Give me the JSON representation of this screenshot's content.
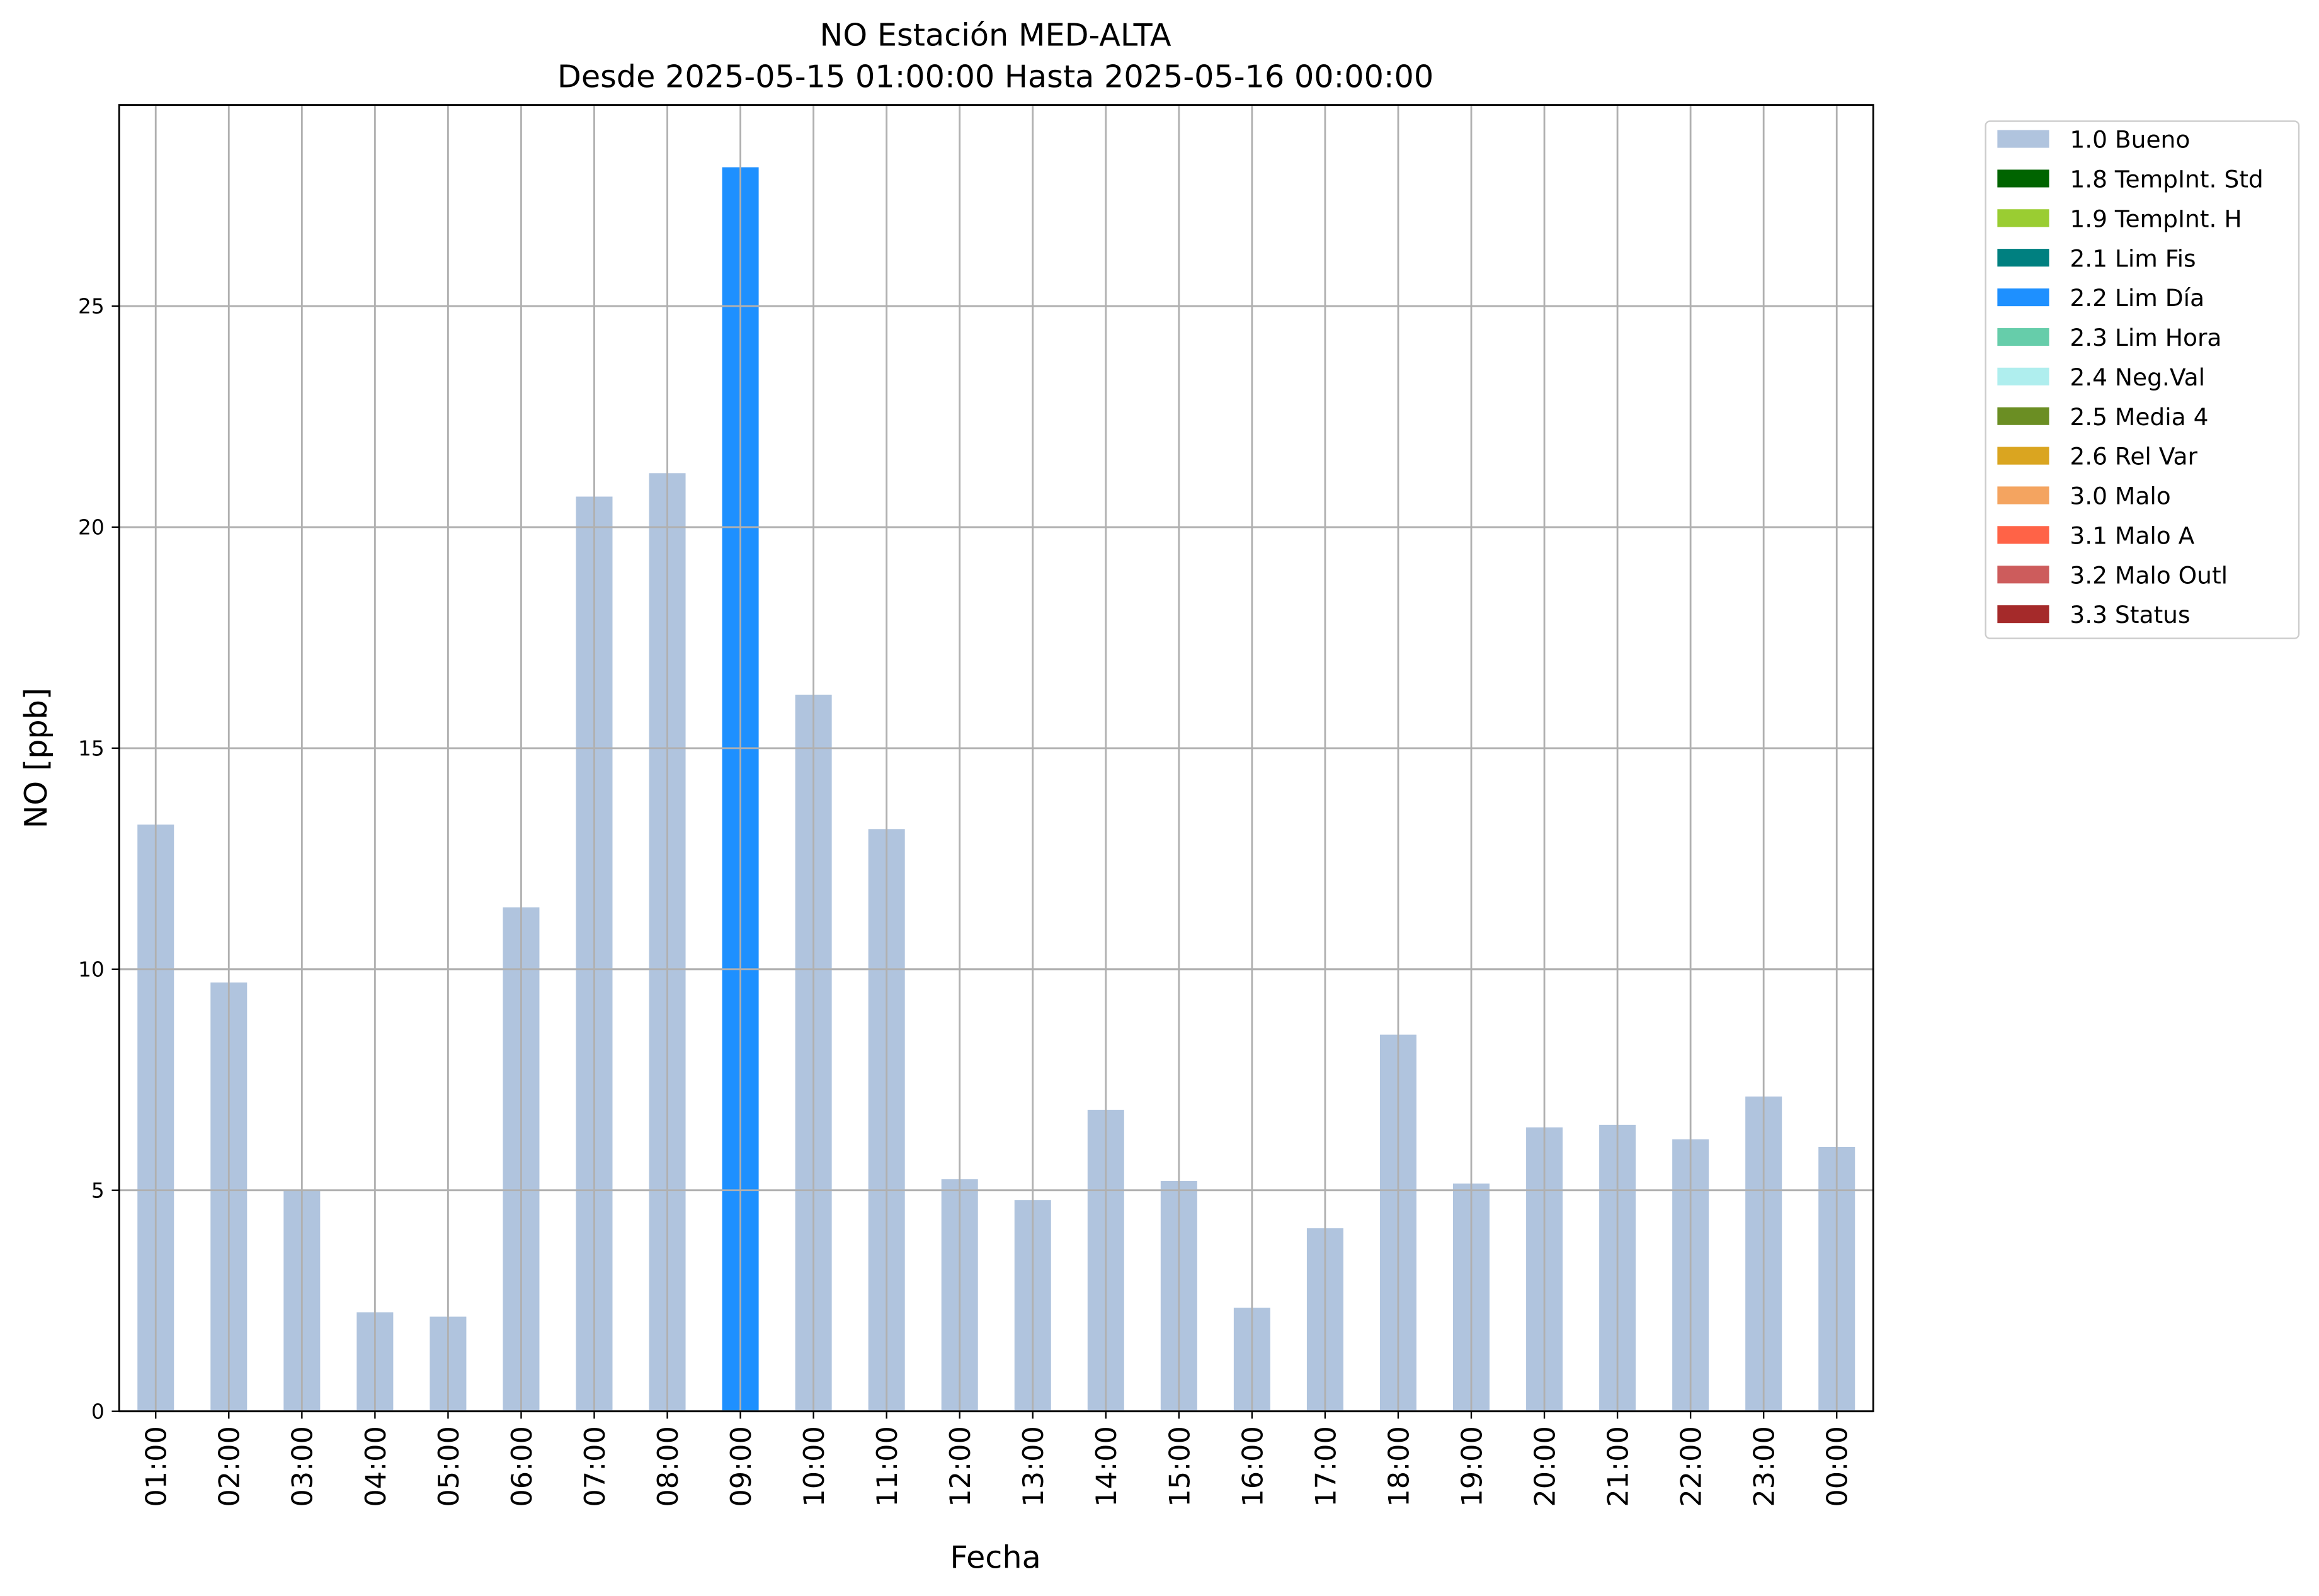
{
  "chart_data": {
    "type": "bar",
    "stacked": true,
    "title": "NO Estación MED-ALTA",
    "subtitle": "Desde 2025-05-15 01:00:00 Hasta 2025-05-16 00:00:00",
    "x_label": "Fecha",
    "y_label": "NO [ppb]",
    "categories": [
      "01:00",
      "02:00",
      "03:00",
      "04:00",
      "05:00",
      "06:00",
      "07:00",
      "08:00",
      "09:00",
      "10:00",
      "11:00",
      "12:00",
      "13:00",
      "14:00",
      "15:00",
      "16:00",
      "17:00",
      "18:00",
      "19:00",
      "20:00",
      "21:00",
      "22:00",
      "23:00",
      "00:00"
    ],
    "series": [
      {
        "name": "1.0 Bueno",
        "color": "#b0c4de",
        "values": [
          13.27,
          9.7,
          5.0,
          2.24,
          2.14,
          11.4,
          20.69,
          21.22,
          null,
          16.21,
          13.17,
          5.25,
          4.78,
          6.82,
          5.21,
          2.34,
          4.14,
          8.52,
          5.15,
          6.42,
          6.48,
          6.15,
          7.12,
          5.98
        ]
      },
      {
        "name": "1.8 TempInt. Std",
        "color": "#006400",
        "values": [
          null,
          null,
          null,
          null,
          null,
          null,
          null,
          null,
          null,
          null,
          null,
          null,
          null,
          null,
          null,
          null,
          null,
          null,
          null,
          null,
          null,
          null,
          null,
          null
        ]
      },
      {
        "name": "1.9 TempInt. H",
        "color": "#9acd32",
        "values": [
          null,
          null,
          null,
          null,
          null,
          null,
          null,
          null,
          null,
          null,
          null,
          null,
          null,
          null,
          null,
          null,
          null,
          null,
          null,
          null,
          null,
          null,
          null,
          null
        ]
      },
      {
        "name": "2.1 Lim Fis",
        "color": "#008080",
        "values": [
          null,
          null,
          null,
          null,
          null,
          null,
          null,
          null,
          null,
          null,
          null,
          null,
          null,
          null,
          null,
          null,
          null,
          null,
          null,
          null,
          null,
          null,
          null,
          null
        ]
      },
      {
        "name": "2.2 Lim Día",
        "color": "#1e90ff",
        "values": [
          null,
          null,
          null,
          null,
          null,
          null,
          null,
          null,
          28.14,
          null,
          null,
          null,
          null,
          null,
          null,
          null,
          null,
          null,
          null,
          null,
          null,
          null,
          null,
          null
        ]
      },
      {
        "name": "2.3 Lim Hora",
        "color": "#66cdaa",
        "values": [
          null,
          null,
          null,
          null,
          null,
          null,
          null,
          null,
          null,
          null,
          null,
          null,
          null,
          null,
          null,
          null,
          null,
          null,
          null,
          null,
          null,
          null,
          null,
          null
        ]
      },
      {
        "name": "2.4 Neg.Val",
        "color": "#afeeee",
        "values": [
          null,
          null,
          null,
          null,
          null,
          null,
          null,
          null,
          null,
          null,
          null,
          null,
          null,
          null,
          null,
          null,
          null,
          null,
          null,
          null,
          null,
          null,
          null,
          null
        ]
      },
      {
        "name": "2.5 Media 4",
        "color": "#6b8e23",
        "values": [
          null,
          null,
          null,
          null,
          null,
          null,
          null,
          null,
          null,
          null,
          null,
          null,
          null,
          null,
          null,
          null,
          null,
          null,
          null,
          null,
          null,
          null,
          null,
          null
        ]
      },
      {
        "name": "2.6 Rel Var",
        "color": "#daa520",
        "values": [
          null,
          null,
          null,
          null,
          null,
          null,
          null,
          null,
          null,
          null,
          null,
          null,
          null,
          null,
          null,
          null,
          null,
          null,
          null,
          null,
          null,
          null,
          null,
          null
        ]
      },
      {
        "name": "3.0 Malo",
        "color": "#f4a460",
        "values": [
          null,
          null,
          null,
          null,
          null,
          null,
          null,
          null,
          null,
          null,
          null,
          null,
          null,
          null,
          null,
          null,
          null,
          null,
          null,
          null,
          null,
          null,
          null,
          null
        ]
      },
      {
        "name": "3.1 Malo A",
        "color": "#ff6347",
        "values": [
          null,
          null,
          null,
          null,
          null,
          null,
          null,
          null,
          null,
          null,
          null,
          null,
          null,
          null,
          null,
          null,
          null,
          null,
          null,
          null,
          null,
          null,
          null,
          null
        ]
      },
      {
        "name": "3.2 Malo Outl",
        "color": "#cd5c5c",
        "values": [
          null,
          null,
          null,
          null,
          null,
          null,
          null,
          null,
          null,
          null,
          null,
          null,
          null,
          null,
          null,
          null,
          null,
          null,
          null,
          null,
          null,
          null,
          null,
          null
        ]
      },
      {
        "name": "3.3 Status",
        "color": "#a52a2a",
        "values": [
          null,
          null,
          null,
          null,
          null,
          null,
          null,
          null,
          null,
          null,
          null,
          null,
          null,
          null,
          null,
          null,
          null,
          null,
          null,
          null,
          null,
          null,
          null,
          null
        ]
      }
    ],
    "ylim": [
      0,
      29.55
    ],
    "yticks": [
      0,
      5,
      10,
      15,
      20,
      25
    ],
    "grid": true,
    "legend": "outside right"
  }
}
